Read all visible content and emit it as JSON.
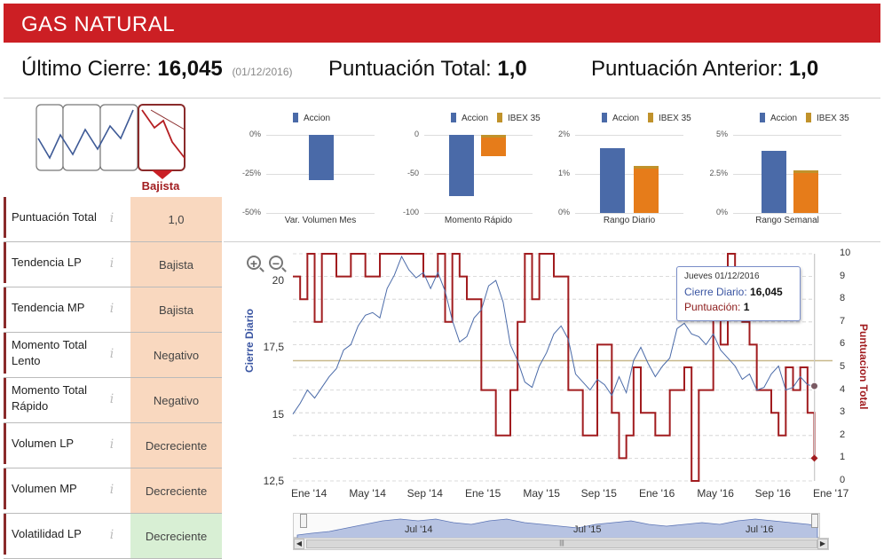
{
  "header": {
    "title": "GAS NATURAL"
  },
  "summary": {
    "last_close_label": "Último Cierre:",
    "last_close_value": "16,045",
    "last_close_date": "(01/12/2016)",
    "total_score_label": "Puntuación Total:",
    "total_score_value": "1,0",
    "prev_score_label": "Puntuación Anterior:",
    "prev_score_value": "1,0"
  },
  "trend": {
    "selected_label": "Bajista"
  },
  "rows": [
    {
      "label": "Puntuación Total",
      "value": "1,0",
      "color": "#f9d8bf"
    },
    {
      "label": "Tendencia LP",
      "value": "Bajista",
      "color": "#f9d8bf"
    },
    {
      "label": "Tendencia MP",
      "value": "Bajista",
      "color": "#f9d8bf"
    },
    {
      "label": "Momento Total Lento",
      "value": "Negativo",
      "color": "#f9d8bf"
    },
    {
      "label": "Momento Total Rápido",
      "value": "Negativo",
      "color": "#f9d8bf"
    },
    {
      "label": "Volumen LP",
      "value": "Decreciente",
      "color": "#f9d8bf"
    },
    {
      "label": "Volumen MP",
      "value": "Decreciente",
      "color": "#f9d8bf"
    },
    {
      "label": "Volatilidad LP",
      "value": "Decreciente",
      "color": "#d8efd4"
    }
  ],
  "info_glyph": "i",
  "colors": {
    "accion": "#4a6aa8",
    "ibex": "#e67c1a",
    "ibex_top": "#c0922b",
    "score": "#a11c1f",
    "price": "#4a6aa8"
  },
  "chart_data": [
    {
      "type": "bar",
      "title": "Var. Volumen Mes",
      "series": [
        {
          "name": "Accion",
          "values": [
            -29
          ]
        }
      ],
      "yticks": [
        "0%",
        "-25%",
        "-50%"
      ],
      "ylim": [
        -50,
        0
      ]
    },
    {
      "type": "bar",
      "title": "Momento Rápido",
      "series": [
        {
          "name": "Accion",
          "values": [
            -78
          ]
        },
        {
          "name": "IBEX 35",
          "values": [
            -27
          ]
        }
      ],
      "yticks": [
        "0",
        "-50",
        "-100"
      ],
      "ylim": [
        -100,
        0
      ]
    },
    {
      "type": "bar",
      "title": "Rango Diario",
      "series": [
        {
          "name": "Accion",
          "values": [
            1.65
          ]
        },
        {
          "name": "IBEX 35",
          "values": [
            1.2
          ]
        }
      ],
      "yticks": [
        "2%",
        "1%",
        "0%"
      ],
      "ylim": [
        0,
        2
      ]
    },
    {
      "type": "bar",
      "title": "Rango Semanal",
      "series": [
        {
          "name": "Accion",
          "values": [
            4.0
          ]
        },
        {
          "name": "IBEX 35",
          "values": [
            2.7
          ]
        }
      ],
      "yticks": [
        "5%",
        "2.5%",
        "0%"
      ],
      "ylim": [
        0,
        5
      ]
    },
    {
      "type": "line",
      "ylabel": "Cierre Diario",
      "y2label": "Puntuacion Total",
      "ylim": [
        12.5,
        21
      ],
      "y2lim": [
        0,
        10
      ],
      "yticks": [
        "20",
        "17,5",
        "15",
        "12,5"
      ],
      "y2ticks": [
        "10",
        "9",
        "8",
        "7",
        "6",
        "5",
        "4",
        "3",
        "2",
        "1",
        "0"
      ],
      "xticks": [
        "Ene '14",
        "May '14",
        "Sep '14",
        "Ene '15",
        "May '15",
        "Sep '15",
        "Ene '16",
        "May '16",
        "Sep '16",
        "Ene '17"
      ],
      "reference_line": 17,
      "series": [
        {
          "name": "Cierre Diario",
          "x": [
            0,
            0.5,
            1,
            1.5,
            2,
            2.5,
            3,
            3.5,
            4,
            4.5,
            5,
            5.5,
            6,
            6.5,
            7,
            7.5,
            8,
            8.5,
            9,
            9.5,
            10,
            10.5,
            11,
            11.5,
            12,
            12.5,
            13,
            13.5,
            14,
            14.5,
            15,
            15.5,
            16,
            16.5,
            17,
            17.5,
            18,
            18.5,
            19,
            19.5,
            20,
            20.5,
            21,
            21.5,
            22,
            22.5,
            23,
            23.5,
            24,
            24.5,
            25,
            25.5,
            26,
            26.5,
            27,
            27.5,
            28,
            28.5,
            29,
            29.5,
            30,
            30.5,
            31,
            31.5,
            32,
            32.5,
            33,
            33.5,
            34,
            34.5,
            35,
            35.5,
            35.97
          ],
          "values": [
            15.0,
            15.4,
            15.9,
            15.6,
            16.0,
            16.4,
            16.7,
            17.4,
            17.6,
            18.3,
            18.7,
            18.8,
            18.6,
            19.7,
            20.2,
            20.9,
            20.4,
            20.1,
            20.3,
            19.7,
            20.3,
            19.6,
            18.5,
            17.7,
            17.9,
            18.6,
            18.9,
            19.8,
            20.0,
            19.2,
            17.6,
            17.0,
            16.2,
            16.0,
            16.8,
            17.3,
            18.0,
            18.3,
            17.8,
            16.5,
            16.2,
            15.9,
            16.3,
            16.1,
            15.7,
            16.4,
            15.8,
            17.0,
            17.5,
            16.9,
            16.4,
            16.8,
            17.1,
            18.2,
            18.4,
            18.0,
            17.9,
            17.6,
            18.0,
            17.4,
            17.1,
            16.8,
            16.3,
            16.5,
            15.9,
            16.0,
            16.5,
            16.8,
            15.9,
            16.0,
            16.4,
            16.1,
            16.05
          ]
        },
        {
          "name": "Puntuacion Total",
          "step": true,
          "x": [
            0,
            0.5,
            1,
            1.5,
            2,
            3,
            4,
            5,
            6,
            7,
            8,
            9,
            10,
            10.5,
            11,
            11.5,
            12,
            13,
            14,
            15,
            15.5,
            16,
            16.5,
            17,
            18,
            19,
            20,
            21,
            22,
            22.5,
            23,
            23.5,
            24,
            25,
            26,
            27,
            27.5,
            28,
            29,
            29.5,
            30,
            30.5,
            31,
            31.5,
            32,
            33,
            33.5,
            34,
            34.5,
            35,
            35.5,
            35.97
          ],
          "values": [
            9,
            8,
            10,
            7,
            10,
            9,
            10,
            9,
            10,
            10,
            10,
            9,
            10,
            7,
            10,
            9,
            8,
            4,
            2,
            4,
            7,
            10,
            8,
            10,
            9,
            4,
            2,
            6,
            3,
            1,
            2,
            5,
            3,
            2,
            4,
            5,
            0,
            4,
            8,
            6,
            10,
            8,
            7,
            6,
            4,
            3,
            2,
            5,
            4,
            5,
            3,
            1
          ]
        }
      ],
      "tooltip": {
        "date": "Jueves 01/12/2016",
        "close_label": "Cierre Diario:",
        "close_value": "16,045",
        "score_label": "Puntuación:",
        "score_value": "1"
      },
      "navigator": {
        "labels": [
          "Jul '14",
          "Jul '15",
          "Jul '16"
        ]
      }
    }
  ]
}
